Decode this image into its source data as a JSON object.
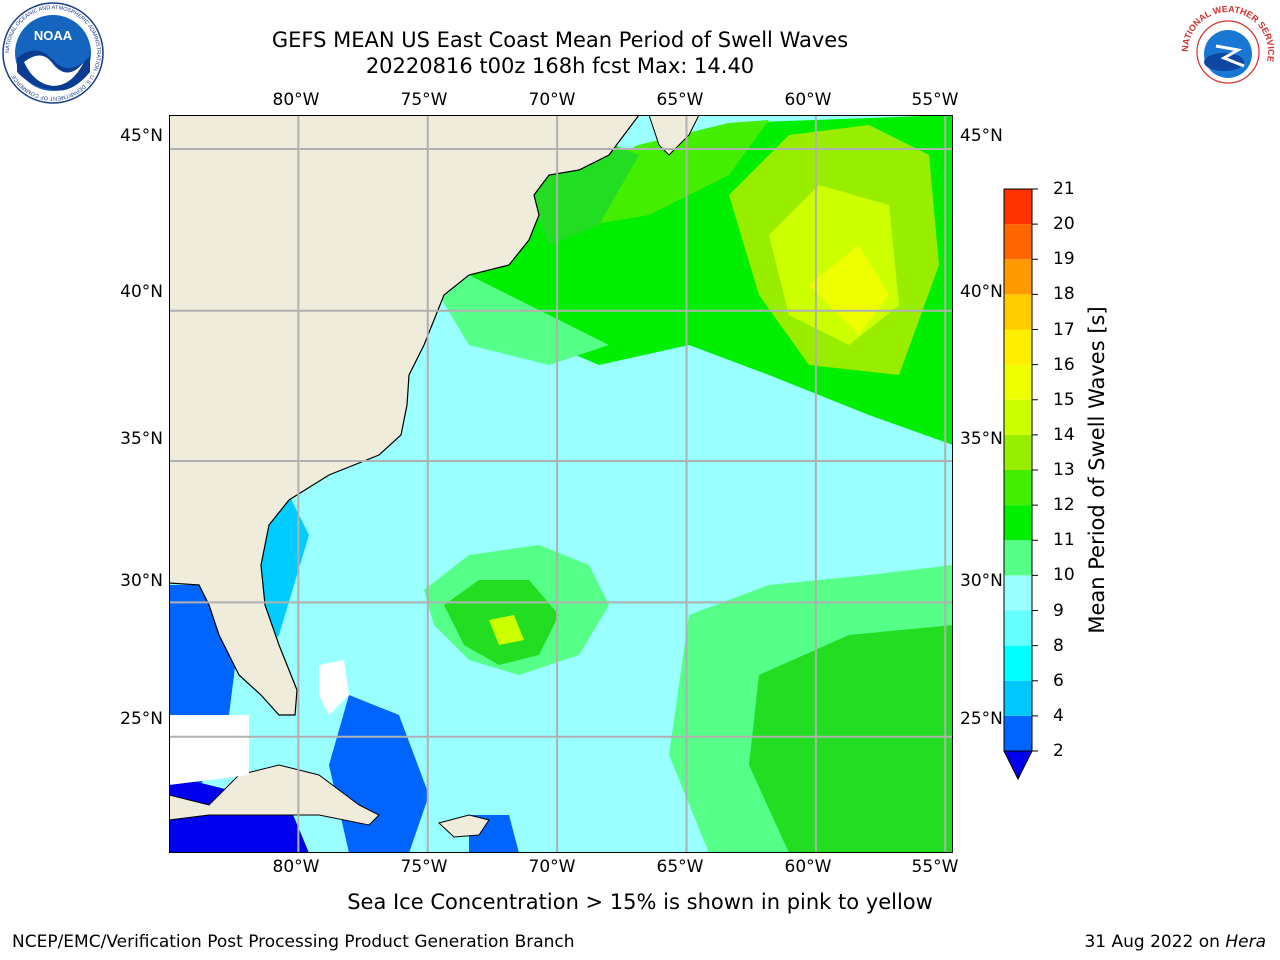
{
  "header": {
    "title_line1": "GEFS MEAN US East Coast Mean Period of Swell Waves",
    "title_line2": "20220816 t00z 168h fcst   Max: 14.40"
  },
  "logos": {
    "left": "NOAA",
    "left_ring": "NATIONAL OCEANIC AND ATMOSPHERIC ADMINISTRATION · U.S. DEPARTMENT OF COMMERCE",
    "right_ring": "NATIONAL WEATHER SERVICE"
  },
  "map": {
    "lon_labels": [
      "80°W",
      "75°W",
      "70°W",
      "65°W",
      "60°W",
      "55°W"
    ],
    "lat_labels": [
      "45°N",
      "40°N",
      "35°N",
      "30°N",
      "25°N"
    ],
    "lon_range": [
      -85,
      -54.7
    ],
    "lat_range": [
      20.5,
      46
    ],
    "land_color": "#efecdc",
    "ocean_color": "#99ffff",
    "grid": true
  },
  "colorbar": {
    "title": "Mean Period of Swell Waves [s]",
    "tick_labels": [
      "2",
      "4",
      "6",
      "8",
      "9",
      "10",
      "11",
      "12",
      "13",
      "14",
      "15",
      "16",
      "17",
      "18",
      "19",
      "20",
      "21"
    ],
    "colors": [
      "#0064ff",
      "#00c8ff",
      "#00ffff",
      "#66ffff",
      "#99ffff",
      "#55ff88",
      "#00ee00",
      "#44ee00",
      "#99ee00",
      "#ccff00",
      "#eeff00",
      "#ffee00",
      "#ffcc00",
      "#ff9900",
      "#ff6600",
      "#ff3300",
      "#ff0000"
    ],
    "extend_min_color": "#0000ee"
  },
  "caption": "Sea Ice Concentration > 15% is shown in pink to yellow",
  "footer": {
    "left": "NCEP/EMC/Verification Post Processing Product Generation Branch",
    "right_date": "31 Aug 2022 on",
    "right_machine": "Hera"
  }
}
